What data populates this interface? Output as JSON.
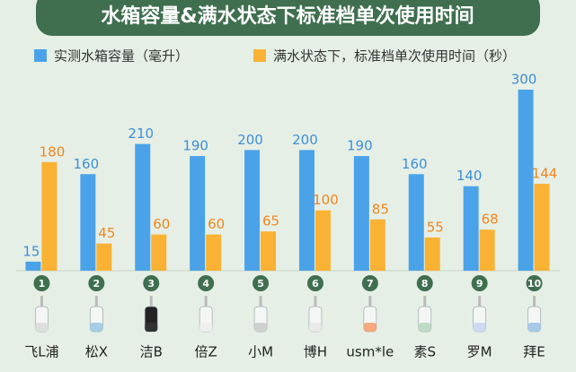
{
  "chart_data": {
    "type": "bar",
    "title": "水箱容量&满水状态下标准档单次使用时间",
    "categories": [
      "飞L浦",
      "松X",
      "洁B",
      "倍Z",
      "小M",
      "博H",
      "usm*le",
      "素S",
      "罗M",
      "拜E"
    ],
    "rank_labels": [
      "1",
      "2",
      "3",
      "4",
      "5",
      "6",
      "7",
      "8",
      "9",
      "10"
    ],
    "series": [
      {
        "name": "实测水箱容量（毫升）",
        "color": "#4aa3e8",
        "label_color": "#3d8fd6",
        "values": [
          15,
          160,
          210,
          190,
          200,
          200,
          190,
          160,
          140,
          300
        ]
      },
      {
        "name": "满水状态下，标准档单次使用时间（秒）",
        "color": "#f9b233",
        "label_color": "#f0861e",
        "values": [
          180,
          45,
          60,
          60,
          65,
          100,
          85,
          55,
          68,
          144
        ]
      }
    ]
  }
}
